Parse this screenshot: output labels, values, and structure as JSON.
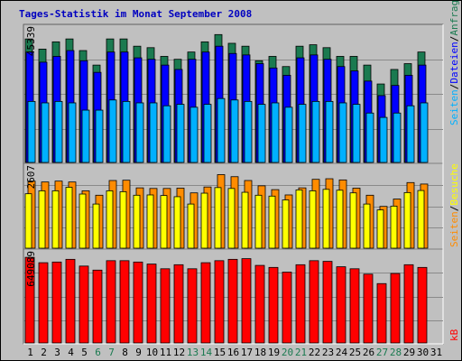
{
  "title": "Tages-Statistik im Monat September 2008",
  "right_legend": {
    "top": [
      {
        "text": "Seiten",
        "color": "#00b0ff"
      },
      {
        "text": "/",
        "color": "#000000"
      },
      {
        "text": "Dateien",
        "color": "#0000ff"
      },
      {
        "text": "/",
        "color": "#000000"
      },
      {
        "text": "Anfragen",
        "color": "#1a7a50"
      }
    ],
    "middle": [
      {
        "text": "Seiten",
        "color": "#ff8c00"
      },
      {
        "text": "/",
        "color": "#000000"
      },
      {
        "text": "Besuche",
        "color": "#ffff00"
      }
    ],
    "bottom": [
      {
        "text": "kB",
        "color": "#ff0000"
      }
    ]
  },
  "chart_data": [
    {
      "type": "bar",
      "panel": "top",
      "y_max_label": "45339",
      "ylim": [
        0,
        45339
      ],
      "categories": [
        "1",
        "2",
        "3",
        "4",
        "5",
        "6",
        "7",
        "8",
        "9",
        "10",
        "11",
        "12",
        "13",
        "14",
        "15",
        "16",
        "17",
        "18",
        "19",
        "20",
        "21",
        "22",
        "23",
        "24",
        "25",
        "26",
        "27",
        "28",
        "29",
        "30",
        "31"
      ],
      "weekend_days": [
        6,
        7,
        13,
        14,
        20,
        21,
        27,
        28
      ],
      "series": [
        {
          "name": "Anfragen",
          "color": "#1a7a50",
          "values": [
            42500,
            39000,
            41500,
            42500,
            38500,
            33500,
            42500,
            42500,
            40000,
            39500,
            36500,
            35500,
            38000,
            41500,
            44000,
            41000,
            40000,
            35000,
            36500,
            33000,
            40000,
            40500,
            39500,
            36500,
            36500,
            33500,
            27000,
            32000,
            34000,
            38000,
            null
          ]
        },
        {
          "name": "Dateien",
          "color": "#0000ff",
          "values": [
            38000,
            34500,
            36500,
            38500,
            35000,
            31000,
            38000,
            38000,
            36000,
            35500,
            33500,
            32000,
            35500,
            38000,
            40000,
            37500,
            37000,
            34000,
            32500,
            30000,
            36000,
            37000,
            35500,
            33000,
            31500,
            28000,
            23000,
            26500,
            30000,
            33500,
            null
          ]
        },
        {
          "name": "Seiten",
          "color": "#00b0ff",
          "values": [
            21000,
            20500,
            21000,
            20500,
            18000,
            18000,
            21500,
            21000,
            20500,
            20500,
            19500,
            20000,
            19000,
            20000,
            22000,
            21500,
            21000,
            20000,
            20500,
            19000,
            20000,
            21000,
            21000,
            20500,
            20000,
            17000,
            15500,
            17000,
            19500,
            20500,
            null
          ]
        }
      ]
    },
    {
      "type": "bar",
      "panel": "middle",
      "y_max_label": "2607",
      "ylim": [
        0,
        2607
      ],
      "categories": [
        "1",
        "2",
        "3",
        "4",
        "5",
        "6",
        "7",
        "8",
        "9",
        "10",
        "11",
        "12",
        "13",
        "14",
        "15",
        "16",
        "17",
        "18",
        "19",
        "20",
        "21",
        "22",
        "23",
        "24",
        "25",
        "26",
        "27",
        "28",
        "29",
        "30",
        "31"
      ],
      "series": [
        {
          "name": "Seiten",
          "color": "#ff8c00",
          "values": [
            2280,
            2250,
            2280,
            2250,
            1950,
            1800,
            2300,
            2310,
            2050,
            2030,
            2030,
            2040,
            1880,
            2080,
            2500,
            2430,
            2300,
            2120,
            1990,
            1810,
            2050,
            2340,
            2360,
            2320,
            2040,
            1800,
            1420,
            1670,
            2230,
            2180,
            null
          ]
        },
        {
          "name": "Besuche",
          "color": "#ffff00",
          "values": [
            1850,
            1950,
            1950,
            2070,
            1840,
            1500,
            1950,
            1920,
            1800,
            1810,
            1790,
            1750,
            1500,
            1870,
            2060,
            2030,
            1900,
            1800,
            1770,
            1640,
            1980,
            1950,
            2000,
            1970,
            1880,
            1500,
            1300,
            1430,
            1890,
            1960,
            null
          ]
        }
      ]
    },
    {
      "type": "bar",
      "panel": "bottom",
      "y_max_label": "649089",
      "ylim": [
        0,
        649089
      ],
      "categories": [
        "1",
        "2",
        "3",
        "4",
        "5",
        "6",
        "7",
        "8",
        "9",
        "10",
        "11",
        "12",
        "13",
        "14",
        "15",
        "16",
        "17",
        "18",
        "19",
        "20",
        "21",
        "22",
        "23",
        "24",
        "25",
        "26",
        "27",
        "28",
        "29",
        "30",
        "31"
      ],
      "series": [
        {
          "name": "kB",
          "color": "#ff0000",
          "values": [
            635000,
            595000,
            600000,
            620000,
            570000,
            540000,
            610000,
            610000,
            600000,
            585000,
            550000,
            580000,
            550000,
            595000,
            610000,
            620000,
            625000,
            575000,
            560000,
            525000,
            580000,
            610000,
            605000,
            565000,
            550000,
            510000,
            440000,
            515000,
            580000,
            560000,
            null
          ]
        }
      ]
    }
  ]
}
